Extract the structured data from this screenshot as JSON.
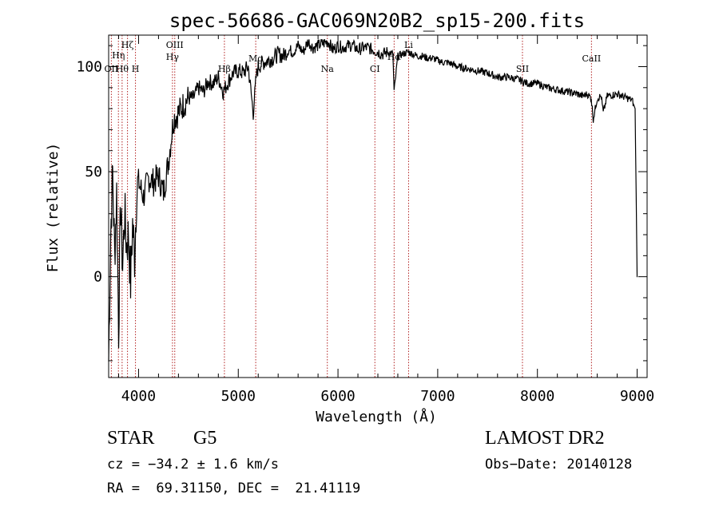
{
  "chart_data": {
    "type": "line",
    "title": "spec-56686-GAC069N20B2_sp15-200.fits",
    "xlabel": "Wavelength (Å)",
    "ylabel": "Flux (relative)",
    "xlim": [
      3700,
      9100
    ],
    "ylim": [
      -48,
      115
    ],
    "xticks": [
      4000,
      5000,
      6000,
      7000,
      8000,
      9000
    ],
    "yticks": [
      0,
      50,
      100
    ],
    "series": [
      {
        "color": "#000000",
        "x": [
          3700,
          3720,
          3740,
          3760,
          3780,
          3800,
          3820,
          3840,
          3860,
          3880,
          3900,
          3920,
          3940,
          3960,
          3980,
          4000,
          4050,
          4100,
          4150,
          4200,
          4250,
          4300,
          4350,
          4400,
          4450,
          4500,
          4550,
          4600,
          4650,
          4700,
          4750,
          4800,
          4850,
          4900,
          4950,
          5000,
          5050,
          5100,
          5150,
          5180,
          5200,
          5250,
          5300,
          5350,
          5400,
          5450,
          5500,
          5550,
          5600,
          5650,
          5700,
          5750,
          5800,
          5850,
          5900,
          5950,
          6000,
          6050,
          6100,
          6150,
          6200,
          6250,
          6300,
          6350,
          6400,
          6450,
          6500,
          6550,
          6563,
          6600,
          6650,
          6700,
          6750,
          6800,
          6850,
          6900,
          6950,
          7000,
          7050,
          7100,
          7150,
          7200,
          7300,
          7400,
          7500,
          7600,
          7700,
          7800,
          7850,
          7900,
          8000,
          8100,
          8200,
          8300,
          8400,
          8450,
          8500,
          8540,
          8560,
          8600,
          8640,
          8660,
          8700,
          8800,
          8850,
          8900,
          8950,
          8980,
          9000,
          9005
        ],
        "y": [
          -40,
          20,
          50,
          10,
          40,
          -25,
          35,
          5,
          30,
          15,
          20,
          -3,
          25,
          10,
          40,
          45,
          38,
          47,
          45,
          48,
          40,
          55,
          75,
          78,
          82,
          85,
          85,
          90,
          88,
          93,
          92,
          95,
          88,
          93,
          97,
          98,
          97,
          100,
          78,
          95,
          100,
          102,
          103,
          104,
          106,
          105,
          108,
          107,
          110,
          107,
          112,
          109,
          110,
          111,
          112,
          108,
          110,
          109,
          110,
          110,
          108,
          109,
          109,
          108,
          107,
          106,
          107,
          106,
          88,
          105,
          106,
          107,
          106,
          105,
          105,
          104,
          104,
          103,
          102,
          102,
          101,
          100,
          99,
          98,
          97,
          95,
          95,
          94,
          93,
          92,
          92,
          90,
          89,
          88,
          87,
          86,
          87,
          85,
          75,
          85,
          86,
          78,
          86,
          87,
          86,
          85,
          84,
          80,
          0,
          0
        ]
      }
    ],
    "lines": [
      {
        "wavelength": 3727,
        "label": "OII"
      },
      {
        "wavelength": 3798,
        "label": "Hη"
      },
      {
        "wavelength": 3835,
        "label": "Hθ"
      },
      {
        "wavelength": 3889,
        "label": "Hζ"
      },
      {
        "wavelength": 3969,
        "label": "H"
      },
      {
        "wavelength": 4340,
        "label": "Hγ"
      },
      {
        "wavelength": 4363,
        "label": "OIII"
      },
      {
        "wavelength": 4861,
        "label": "Hβ"
      },
      {
        "wavelength": 5175,
        "label": "Mg"
      },
      {
        "wavelength": 5893,
        "label": "Na"
      },
      {
        "wavelength": 6370,
        "label": "CI"
      },
      {
        "wavelength": 6563,
        "label": "Hα"
      },
      {
        "wavelength": 6708,
        "label": "Li"
      },
      {
        "wavelength": 7850,
        "label": "SII"
      },
      {
        "wavelength": 8542,
        "label": "CaII"
      }
    ],
    "grid": false,
    "legend": "none"
  },
  "info": {
    "class": "STAR",
    "subclass": "G5",
    "cz": "cz = −34.2 ± 1.6 km/s",
    "radec": "RA =  69.31150, DEC =  21.41119",
    "survey": "LAMOST DR2",
    "obsdate": "Obs−Date: 20140128"
  }
}
